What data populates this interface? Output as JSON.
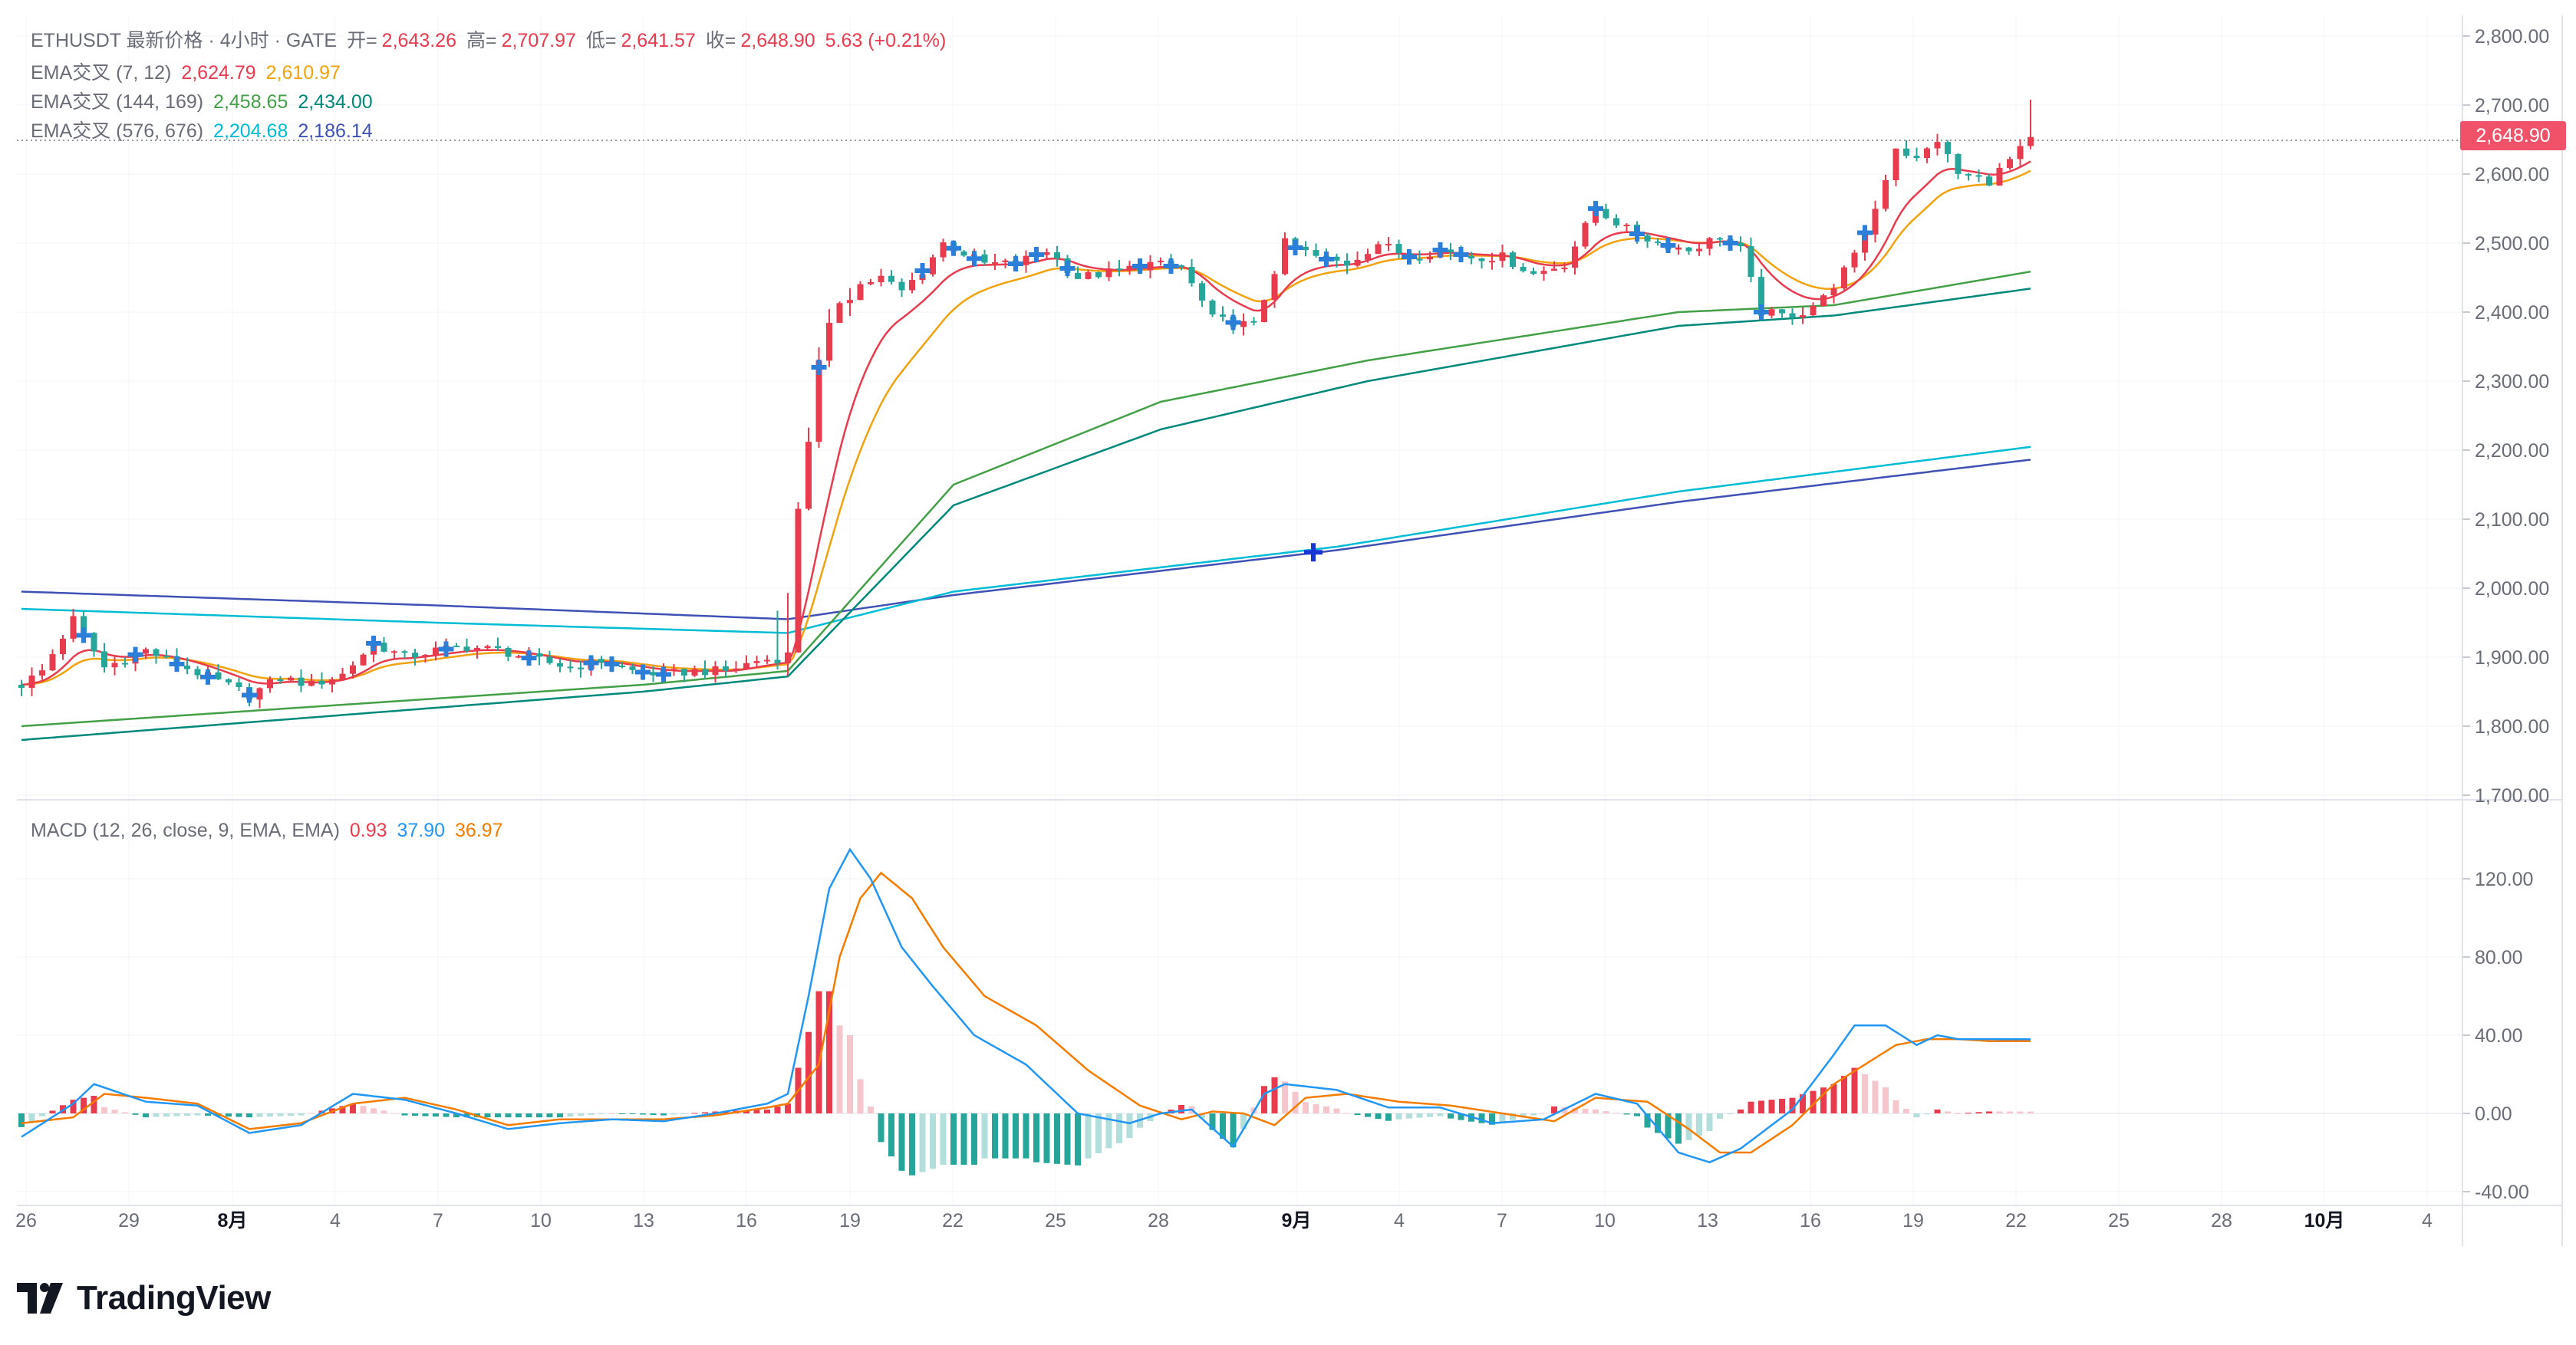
{
  "header": {
    "symbol_line": "ETHUSDT 最新价格 · 4小时 · GATE",
    "ohlc": [
      {
        "label": "开=",
        "value": "2,643.26"
      },
      {
        "label": "高=",
        "value": "2,707.97"
      },
      {
        "label": "低=",
        "value": "2,641.57"
      },
      {
        "label": "收=",
        "value": "2,648.90"
      }
    ],
    "change": "5.63 (+0.21%)"
  },
  "indicators": [
    {
      "name": "EMA交叉 (7, 12)",
      "values": [
        "2,624.79",
        "2,610.97"
      ],
      "colors": [
        "#e83b4d",
        "#f2a20f"
      ]
    },
    {
      "name": "EMA交叉 (144, 169)",
      "values": [
        "2,458.65",
        "2,434.00"
      ],
      "colors": [
        "#43a047",
        "#00897b"
      ]
    },
    {
      "name": "EMA交叉 (576, 676)",
      "values": [
        "2,204.68",
        "2,186.14"
      ],
      "colors": [
        "#00bcd4",
        "#3f51b5"
      ]
    }
  ],
  "macd_legend": {
    "name": "MACD (12, 26, close, 9, EMA, EMA)",
    "values": [
      "0.93",
      "37.90",
      "36.97"
    ],
    "colors": [
      "#e83b4d",
      "#2196f3",
      "#f57c00"
    ]
  },
  "last_price_label": "2,648.90",
  "brand": {
    "name": "TradingView"
  },
  "colors": {
    "up": "#e83b4d",
    "down": "#26a69a",
    "ema7": "#e83b4d",
    "ema12": "#f2a20f",
    "ema144": "#43a047",
    "ema169": "#00897b",
    "ema576": "#00bcd4",
    "ema676": "#3f51b5",
    "macd": "#2196f3",
    "signal": "#f57c00",
    "cross": "#2b7fd8"
  },
  "chart_data": [
    {
      "type": "candlestick",
      "title": "ETHUSDT 4h",
      "x_tick_labels": [
        "26",
        "29",
        "8月",
        "4",
        "7",
        "10",
        "13",
        "16",
        "19",
        "22",
        "25",
        "28",
        "9月",
        "4",
        "7",
        "10",
        "13",
        "16",
        "19",
        "22",
        "25",
        "28",
        "10月",
        "4"
      ],
      "y_tick_labels": [
        "2,800.00",
        "2,700.00",
        "2,600.00",
        "2,500.00",
        "2,400.00",
        "2,300.00",
        "2,200.00",
        "2,100.00",
        "2,000.00",
        "1,900.00",
        "1,800.00",
        "1,700.00"
      ],
      "ylim": [
        1700,
        2800
      ],
      "price_path": {
        "t": [
          0,
          2,
          5,
          8,
          12,
          15,
          19,
          22,
          25,
          28,
          31,
          34,
          37,
          40,
          43,
          46,
          50,
          53,
          56,
          59,
          62,
          65,
          68,
          71,
          74,
          75,
          77,
          79,
          81,
          83,
          85,
          87,
          89,
          93,
          96,
          99,
          102,
          106,
          109,
          112,
          115,
          119,
          122,
          125,
          128,
          131,
          134,
          137,
          140,
          143,
          146,
          149,
          152,
          155,
          158,
          161,
          164,
          166,
          168,
          170,
          172,
          174,
          177,
          179,
          181,
          183,
          185,
          187,
          190,
          192,
          194
        ],
        "close": [
          1860,
          1880,
          1955,
          1885,
          1910,
          1890,
          1865,
          1845,
          1870,
          1860,
          1875,
          1920,
          1900,
          1910,
          1915,
          1910,
          1895,
          1885,
          1895,
          1880,
          1875,
          1880,
          1880,
          1895,
          1900,
          2120,
          2320,
          2420,
          2440,
          2450,
          2430,
          2460,
          2500,
          2470,
          2470,
          2490,
          2450,
          2460,
          2470,
          2465,
          2390,
          2380,
          2500,
          2480,
          2470,
          2500,
          2480,
          2490,
          2480,
          2480,
          2455,
          2470,
          2550,
          2520,
          2500,
          2490,
          2510,
          2490,
          2400,
          2395,
          2400,
          2420,
          2480,
          2550,
          2640,
          2620,
          2650,
          2600,
          2590,
          2620,
          2649
        ]
      },
      "series": [
        {
          "name": "EMA交叉 (7, 12)",
          "last": [
            2624.79,
            2610.97
          ]
        },
        {
          "name": "EMA交叉 (144, 169)",
          "x": [
            0,
            60,
            74,
            90,
            110,
            130,
            160,
            175,
            194
          ],
          "values_144": [
            1800,
            1860,
            1880,
            2150,
            2270,
            2330,
            2400,
            2410,
            2458.65
          ],
          "values_169": [
            1780,
            1850,
            1872,
            2120,
            2230,
            2300,
            2380,
            2395,
            2434
          ]
        },
        {
          "name": "EMA交叉 (576, 676)",
          "x": [
            0,
            40,
            74,
            90,
            127,
            160,
            194
          ],
          "values_576": [
            1970,
            1950,
            1935,
            1995,
            2060,
            2140,
            2204.68
          ],
          "values_676": [
            1995,
            1975,
            1955,
            1990,
            2055,
            2125,
            2186.14
          ]
        }
      ],
      "last_price": 2648.9,
      "ema_cross_markers": "plus markers at EMA(7,12) crossovers; one marker at 2,050 near 9月"
    },
    {
      "type": "line+bar",
      "title": "MACD (12, 26, close, 9, EMA, EMA)",
      "y_tick_labels": [
        "120.00",
        "80.00",
        "40.00",
        "0.00",
        "-40.00"
      ],
      "ylim": [
        -40,
        140
      ],
      "macd": {
        "t": [
          0,
          5,
          7,
          12,
          17,
          22,
          27,
          32,
          37,
          42,
          47,
          52,
          57,
          62,
          67,
          72,
          74,
          76,
          78,
          80,
          82,
          85,
          88,
          92,
          97,
          102,
          107,
          110,
          113,
          117,
          120,
          122,
          127,
          132,
          137,
          142,
          147,
          152,
          156,
          160,
          163,
          166,
          171,
          175,
          177,
          180,
          183,
          185,
          187,
          190,
          194
        ],
        "values": [
          -12,
          5,
          15,
          6,
          4,
          -10,
          -6,
          10,
          7,
          0,
          -8,
          -5,
          -3,
          -4,
          0,
          5,
          10,
          60,
          115,
          135,
          120,
          85,
          65,
          40,
          25,
          0,
          -5,
          0,
          2,
          -17,
          10,
          15,
          12,
          3,
          3,
          -5,
          -3,
          10,
          5,
          -20,
          -25,
          -18,
          2,
          30,
          45,
          45,
          35,
          40,
          38,
          38,
          37.9
        ]
      },
      "signal": {
        "t": [
          0,
          5,
          8,
          12,
          17,
          22,
          27,
          32,
          37,
          42,
          47,
          52,
          57,
          62,
          67,
          72,
          74,
          77,
          79,
          81,
          83,
          86,
          89,
          93,
          98,
          103,
          108,
          112,
          115,
          118,
          121,
          124,
          128,
          133,
          138,
          143,
          148,
          152,
          157,
          161,
          164,
          167,
          171,
          175,
          178,
          181,
          184,
          187,
          190,
          194
        ],
        "values": [
          -5,
          -2,
          10,
          8,
          5,
          -8,
          -5,
          5,
          8,
          2,
          -6,
          -3,
          -3,
          -3,
          -1,
          3,
          5,
          25,
          80,
          110,
          123,
          110,
          85,
          60,
          45,
          22,
          4,
          -3,
          1,
          0,
          -6,
          8,
          10,
          6,
          4,
          0,
          -4,
          8,
          6,
          -8,
          -20,
          -20,
          -6,
          15,
          25,
          35,
          38,
          38,
          37,
          36.97
        ]
      },
      "histogram_last": 0.93
    }
  ]
}
